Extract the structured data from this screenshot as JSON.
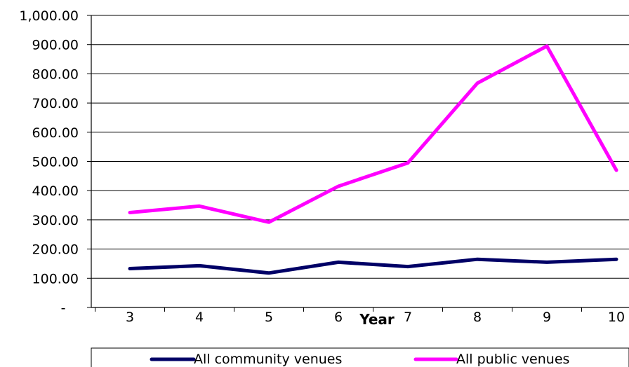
{
  "chart_data": {
    "type": "line",
    "xlabel": "Year",
    "ylabel": "",
    "title": "",
    "categories": [
      "3",
      "4",
      "5",
      "6",
      "7",
      "8",
      "9",
      "10"
    ],
    "y_ticks": [
      "-",
      "100.00",
      "200.00",
      "300.00",
      "400.00",
      "500.00",
      "600.00",
      "700.00",
      "800.00",
      "900.00",
      "1,000.00"
    ],
    "ylim": [
      0,
      1000
    ],
    "grid": true,
    "legend_position": "bottom",
    "series": [
      {
        "name": "All community venues",
        "color": "#000066",
        "values": [
          133,
          143,
          118,
          155,
          140,
          165,
          155,
          165
        ]
      },
      {
        "name": "All public venues",
        "color": "#ff00ff",
        "values": [
          325,
          347,
          292,
          415,
          495,
          768,
          895,
          470
        ]
      }
    ]
  }
}
